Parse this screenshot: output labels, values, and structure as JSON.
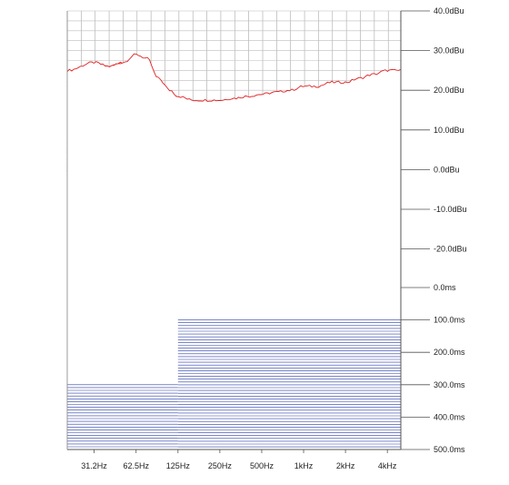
{
  "chart_data": {
    "type": "line",
    "subtype": "waterfall",
    "title": "",
    "xlabel": "",
    "ylabel": "",
    "x_scale": "log",
    "x_range_hz": [
      20,
      5000
    ],
    "x_ticks": [
      {
        "hz": 31.2,
        "label": "31.2Hz"
      },
      {
        "hz": 62.5,
        "label": "62.5Hz"
      },
      {
        "hz": 125,
        "label": "125Hz"
      },
      {
        "hz": 250,
        "label": "250Hz"
      },
      {
        "hz": 500,
        "label": "500Hz"
      },
      {
        "hz": 1000,
        "label": "1kHz"
      },
      {
        "hz": 2000,
        "label": "2kHz"
      },
      {
        "hz": 4000,
        "label": "4kHz"
      }
    ],
    "level_ticks": [
      {
        "dbu": 40,
        "label": "40.0dBu"
      },
      {
        "dbu": 30,
        "label": "30.0dBu"
      },
      {
        "dbu": 20,
        "label": "20.0dBu"
      },
      {
        "dbu": 10,
        "label": "10.0dBu"
      },
      {
        "dbu": 0,
        "label": "0.0dBu"
      },
      {
        "dbu": -10,
        "label": "-10.0dBu"
      },
      {
        "dbu": -20,
        "label": "-20.0dBu"
      }
    ],
    "time_ticks": [
      {
        "ms": 0,
        "label": "0.0ms"
      },
      {
        "ms": 100,
        "label": "100.0ms"
      },
      {
        "ms": 200,
        "label": "200.0ms"
      },
      {
        "ms": 300,
        "label": "300.0ms"
      },
      {
        "ms": 400,
        "label": "400.0ms"
      },
      {
        "ms": 500,
        "label": "500.0ms"
      }
    ],
    "grid": true,
    "slice_count": 70,
    "color_scale": [
      "#2b3fa8",
      "#1fc0f0",
      "#7ec846",
      "#f0e020",
      "#f0a020",
      "#e02020"
    ],
    "baseline_color": "#2b3fa8",
    "front_slice_dbu": {
      "hz": [
        20,
        31.2,
        40,
        50,
        62.5,
        75,
        90,
        110,
        125,
        160,
        200,
        250,
        315,
        400,
        500,
        630,
        800,
        1000,
        1250,
        1600,
        2000,
        2500,
        3150,
        4000,
        5000
      ],
      "dbu": [
        25,
        27,
        26,
        27,
        29,
        28,
        23,
        20,
        18.5,
        17.5,
        17.5,
        17.5,
        18,
        18.5,
        19,
        19.5,
        20,
        21,
        21,
        22,
        22,
        23,
        24,
        25,
        25
      ]
    }
  }
}
